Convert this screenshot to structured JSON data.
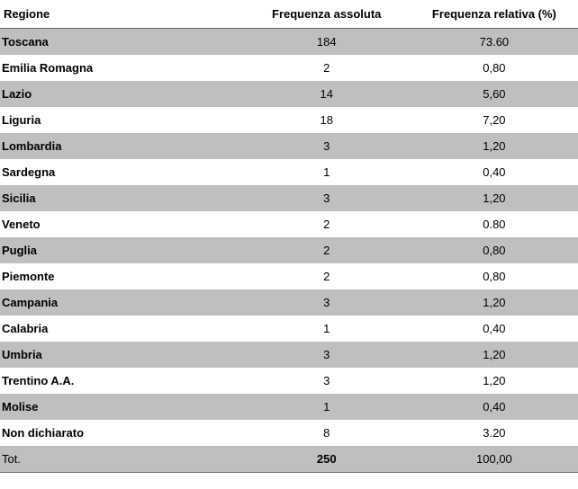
{
  "table": {
    "columns": [
      "Regione",
      "Frequenza assoluta",
      "Frequenza relativa (%)"
    ],
    "column_widths": [
      "42%",
      "29%",
      "29%"
    ],
    "rows": [
      {
        "regione": "Toscana",
        "freq_abs": "184",
        "freq_rel": "73.60"
      },
      {
        "regione": "Emilia Romagna",
        "freq_abs": "2",
        "freq_rel": "0,80"
      },
      {
        "regione": "Lazio",
        "freq_abs": "14",
        "freq_rel": "5,60"
      },
      {
        "regione": "Liguria",
        "freq_abs": "18",
        "freq_rel": "7,20"
      },
      {
        "regione": "Lombardia",
        "freq_abs": "3",
        "freq_rel": "1,20"
      },
      {
        "regione": "Sardegna",
        "freq_abs": "1",
        "freq_rel": "0,40"
      },
      {
        "regione": "Sicilia",
        "freq_abs": "3",
        "freq_rel": "1,20"
      },
      {
        "regione": "Veneto",
        "freq_abs": "2",
        "freq_rel": "0.80"
      },
      {
        "regione": "Puglia",
        "freq_abs": "2",
        "freq_rel": "0,80"
      },
      {
        "regione": "Piemonte",
        "freq_abs": "2",
        "freq_rel": "0,80"
      },
      {
        "regione": "Campania",
        "freq_abs": "3",
        "freq_rel": "1,20"
      },
      {
        "regione": "Calabria",
        "freq_abs": "1",
        "freq_rel": "0,40"
      },
      {
        "regione": "Umbria",
        "freq_abs": "3",
        "freq_rel": "1,20"
      },
      {
        "regione": "Trentino A.A.",
        "freq_abs": "3",
        "freq_rel": "1,20"
      },
      {
        "regione": "Molise",
        "freq_abs": "1",
        "freq_rel": "0,40"
      },
      {
        "regione": "Non dichiarato",
        "freq_abs": "8",
        "freq_rel": "3.20"
      }
    ],
    "total": {
      "label": "Tot.",
      "freq_abs": "250",
      "freq_rel": "100,00"
    },
    "colors": {
      "row_grey": "#bfbfbf",
      "row_white": "#ffffff",
      "text": "#000000",
      "border": "#666666",
      "background": "#ffffff"
    },
    "typography": {
      "font_family": "Arial",
      "header_fontsize": 13,
      "cell_fontsize": 13,
      "header_fontweight": "bold",
      "regione_fontweight": "bold"
    }
  }
}
